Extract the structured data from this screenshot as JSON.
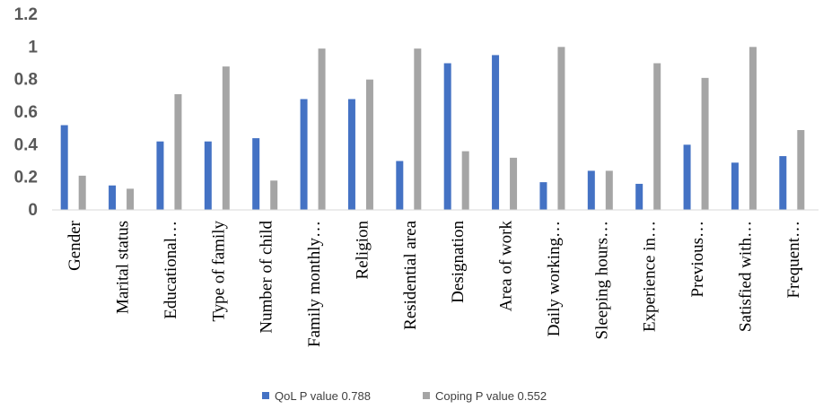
{
  "chart_data": {
    "type": "bar",
    "categories": [
      "Gender",
      "Marital status",
      "Educational…",
      "Type of family",
      "Number of child",
      "Family monthly…",
      "Religion",
      "Residential area",
      "Designation",
      "Area of work",
      "Daily working…",
      "Sleeping hours…",
      "Experience in…",
      "Previous…",
      "Satisfied with…",
      "Frequent…"
    ],
    "series": [
      {
        "name": "QoL P value 0.788",
        "color": "#4472C4",
        "values": [
          0.52,
          0.15,
          0.42,
          0.42,
          0.44,
          0.68,
          0.68,
          0.3,
          0.9,
          0.95,
          0.17,
          0.24,
          0.16,
          0.4,
          0.29,
          0.33
        ]
      },
      {
        "name": "Coping P value 0.552",
        "color": "#A5A5A5",
        "values": [
          0.21,
          0.13,
          0.71,
          0.88,
          0.18,
          0.99,
          0.8,
          0.99,
          0.36,
          0.32,
          1.0,
          0.24,
          0.9,
          0.81,
          1.0,
          0.49
        ]
      }
    ],
    "yticks": [
      "0",
      "0.2",
      "0.4",
      "0.6",
      "0.8",
      "1",
      "1.2"
    ],
    "ylim": [
      0,
      1.2
    ],
    "grid": false,
    "legend": "bottom"
  }
}
